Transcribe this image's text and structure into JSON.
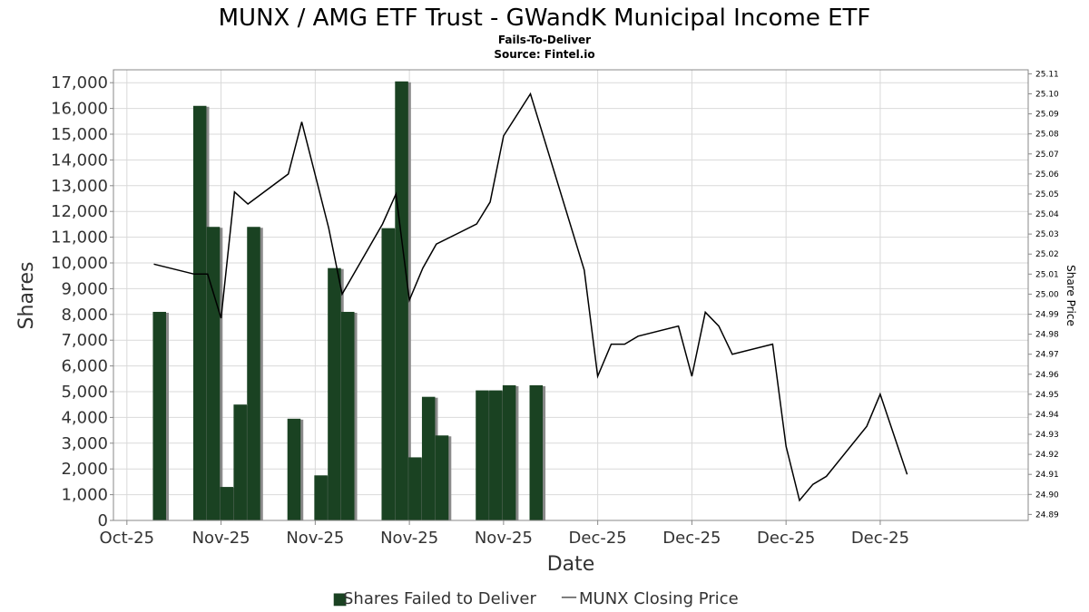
{
  "chart_data": {
    "type": "bar",
    "title": "MUNX / AMG ETF Trust - GWandK Municipal Income ETF",
    "subtitle_1": "Fails-To-Deliver",
    "subtitle_2": "Source: Fintel.io",
    "xlabel": "Date",
    "ylabel": "Shares",
    "y2label": "Share Price",
    "ylim": [
      0,
      17500
    ],
    "y2lim": [
      24.887,
      25.112
    ],
    "xlim": [
      "2025-10-24",
      "2025-12-31"
    ],
    "grid": true,
    "legend_position": "bottom",
    "x_tick_labels": [
      {
        "date": "2025-10-25",
        "label": "Oct-25"
      },
      {
        "date": "2025-11-01",
        "label": "Nov-25"
      },
      {
        "date": "2025-11-08",
        "label": "Nov-25"
      },
      {
        "date": "2025-11-15",
        "label": "Nov-25"
      },
      {
        "date": "2025-11-22",
        "label": "Nov-25"
      },
      {
        "date": "2025-11-29",
        "label": "Dec-25"
      },
      {
        "date": "2025-12-06",
        "label": "Dec-25"
      },
      {
        "date": "2025-12-13",
        "label": "Dec-25"
      },
      {
        "date": "2025-12-20",
        "label": "Dec-25"
      }
    ],
    "y_ticks": [
      "0",
      "1,000",
      "2,000",
      "3,000",
      "4,000",
      "5,000",
      "6,000",
      "7,000",
      "8,000",
      "9,000",
      "10,000",
      "11,000",
      "12,000",
      "13,000",
      "14,000",
      "15,000",
      "16,000",
      "17,000"
    ],
    "y2_ticks": [
      "24.89",
      "24.90",
      "24.91",
      "24.92",
      "24.93",
      "24.94",
      "24.95",
      "24.96",
      "24.97",
      "24.98",
      "24.99",
      "25.00",
      "25.01",
      "25.02",
      "25.03",
      "25.04",
      "25.05",
      "25.06",
      "25.07",
      "25.08",
      "25.09",
      "25.10",
      "25.11"
    ],
    "series": [
      {
        "name": "Shares Failed to Deliver",
        "kind": "bar",
        "color": "#1a4222",
        "points": [
          {
            "x": "2025-10-27",
            "y": 8100
          },
          {
            "x": "2025-10-30",
            "y": 16100
          },
          {
            "x": "2025-10-31",
            "y": 11400
          },
          {
            "x": "2025-11-01",
            "y": 1300
          },
          {
            "x": "2025-11-02",
            "y": 4500
          },
          {
            "x": "2025-11-03",
            "y": 11400
          },
          {
            "x": "2025-11-06",
            "y": 3950
          },
          {
            "x": "2025-11-08",
            "y": 1750
          },
          {
            "x": "2025-11-09",
            "y": 9800
          },
          {
            "x": "2025-11-10",
            "y": 8100
          },
          {
            "x": "2025-11-13",
            "y": 11350
          },
          {
            "x": "2025-11-14",
            "y": 17050
          },
          {
            "x": "2025-11-15",
            "y": 2450
          },
          {
            "x": "2025-11-16",
            "y": 4800
          },
          {
            "x": "2025-11-17",
            "y": 3300
          },
          {
            "x": "2025-11-20",
            "y": 5050
          },
          {
            "x": "2025-11-21",
            "y": 5050
          },
          {
            "x": "2025-11-22",
            "y": 5250
          },
          {
            "x": "2025-11-24",
            "y": 5250
          }
        ]
      },
      {
        "name": "MUNX Closing Price",
        "kind": "line",
        "color": "#000000",
        "points": [
          {
            "x": "2025-10-27",
            "y": 25.015
          },
          {
            "x": "2025-10-30",
            "y": 25.01
          },
          {
            "x": "2025-10-31",
            "y": 25.01
          },
          {
            "x": "2025-11-01",
            "y": 24.988
          },
          {
            "x": "2025-11-02",
            "y": 25.051
          },
          {
            "x": "2025-11-03",
            "y": 25.045
          },
          {
            "x": "2025-11-06",
            "y": 25.06
          },
          {
            "x": "2025-11-07",
            "y": 25.086
          },
          {
            "x": "2025-11-09",
            "y": 25.033
          },
          {
            "x": "2025-11-10",
            "y": 25.0
          },
          {
            "x": "2025-11-13",
            "y": 25.035
          },
          {
            "x": "2025-11-14",
            "y": 25.05
          },
          {
            "x": "2025-11-15",
            "y": 24.997
          },
          {
            "x": "2025-11-16",
            "y": 25.013
          },
          {
            "x": "2025-11-17",
            "y": 25.025
          },
          {
            "x": "2025-11-20",
            "y": 25.035
          },
          {
            "x": "2025-11-21",
            "y": 25.046
          },
          {
            "x": "2025-11-22",
            "y": 25.079
          },
          {
            "x": "2025-11-24",
            "y": 25.1
          },
          {
            "x": "2025-11-28",
            "y": 25.012
          },
          {
            "x": "2025-11-29",
            "y": 24.959
          },
          {
            "x": "2025-11-30",
            "y": 24.975
          },
          {
            "x": "2025-12-01",
            "y": 24.975
          },
          {
            "x": "2025-12-02",
            "y": 24.979
          },
          {
            "x": "2025-12-05",
            "y": 24.984
          },
          {
            "x": "2025-12-06",
            "y": 24.959
          },
          {
            "x": "2025-12-07",
            "y": 24.991
          },
          {
            "x": "2025-12-08",
            "y": 24.984
          },
          {
            "x": "2025-12-09",
            "y": 24.97
          },
          {
            "x": "2025-12-12",
            "y": 24.975
          },
          {
            "x": "2025-12-13",
            "y": 24.924
          },
          {
            "x": "2025-12-14",
            "y": 24.897
          },
          {
            "x": "2025-12-15",
            "y": 24.905
          },
          {
            "x": "2025-12-16",
            "y": 24.909
          },
          {
            "x": "2025-12-19",
            "y": 24.934
          },
          {
            "x": "2025-12-20",
            "y": 24.95
          },
          {
            "x": "2025-12-22",
            "y": 24.91
          }
        ]
      }
    ],
    "legend": [
      {
        "label": "Shares Failed to Deliver",
        "marker": "■"
      },
      {
        "label": "MUNX Closing Price",
        "marker": "—"
      }
    ]
  }
}
